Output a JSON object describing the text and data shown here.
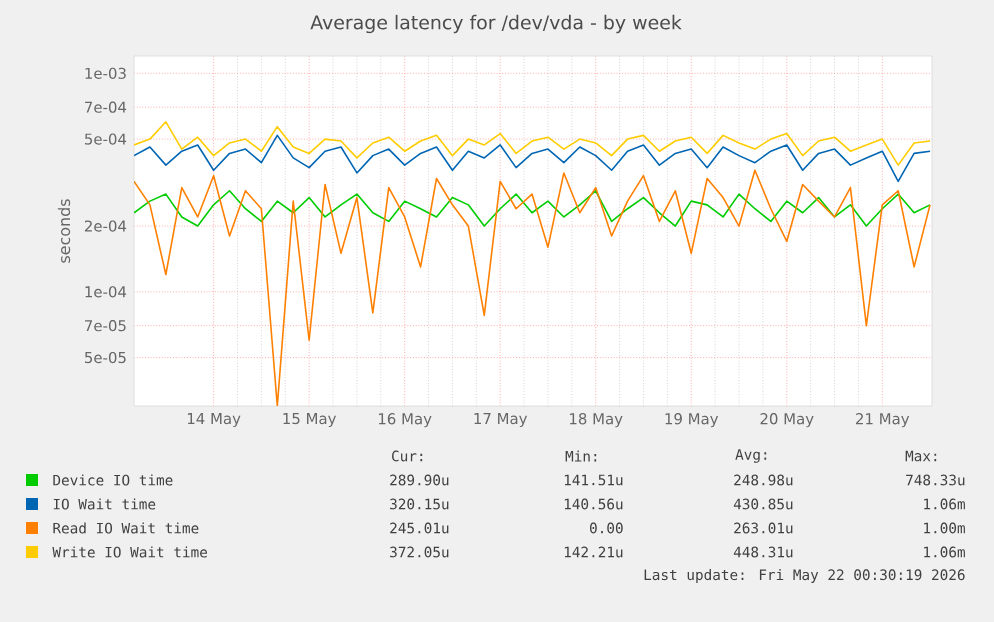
{
  "chart_data": {
    "type": "line",
    "title": "Average latency for /dev/vda - by week",
    "ylabel": "seconds",
    "log": true,
    "grid": true,
    "legend": "bottom",
    "marker": "none",
    "line_style": "solid",
    "xlim": [
      "2026-05-13T16:00",
      "2026-05-22T00:30"
    ],
    "xticks": [
      {
        "value": "2026-05-14T12:00",
        "label": "14 May"
      },
      {
        "value": "2026-05-15T12:00",
        "label": "15 May"
      },
      {
        "value": "2026-05-16T12:00",
        "label": "16 May"
      },
      {
        "value": "2026-05-17T12:00",
        "label": "17 May"
      },
      {
        "value": "2026-05-18T12:00",
        "label": "18 May"
      },
      {
        "value": "2026-05-19T12:00",
        "label": "19 May"
      },
      {
        "value": "2026-05-20T12:00",
        "label": "20 May"
      },
      {
        "value": "2026-05-21T12:00",
        "label": "21 May"
      }
    ],
    "ylim": [
      3e-05,
      0.0012
    ],
    "yticks": [
      {
        "value": 5e-05,
        "label": "5e-05"
      },
      {
        "value": 7e-05,
        "label": "7e-05"
      },
      {
        "value": 0.0001,
        "label": "1e-04"
      },
      {
        "value": 0.0002,
        "label": "2e-04"
      },
      {
        "value": 0.0005,
        "label": "5e-04"
      },
      {
        "value": 0.0007,
        "label": "7e-04"
      },
      {
        "value": 0.001,
        "label": "1e-03"
      }
    ],
    "x": [
      "2026-05-13T16:00",
      "2026-05-13T20:00",
      "2026-05-14T00:00",
      "2026-05-14T04:00",
      "2026-05-14T08:00",
      "2026-05-14T12:00",
      "2026-05-14T16:00",
      "2026-05-14T20:00",
      "2026-05-15T00:00",
      "2026-05-15T04:00",
      "2026-05-15T08:00",
      "2026-05-15T12:00",
      "2026-05-15T16:00",
      "2026-05-15T20:00",
      "2026-05-16T00:00",
      "2026-05-16T04:00",
      "2026-05-16T08:00",
      "2026-05-16T12:00",
      "2026-05-16T16:00",
      "2026-05-16T20:00",
      "2026-05-17T00:00",
      "2026-05-17T04:00",
      "2026-05-17T08:00",
      "2026-05-17T12:00",
      "2026-05-17T16:00",
      "2026-05-17T20:00",
      "2026-05-18T00:00",
      "2026-05-18T04:00",
      "2026-05-18T08:00",
      "2026-05-18T12:00",
      "2026-05-18T16:00",
      "2026-05-18T20:00",
      "2026-05-19T00:00",
      "2026-05-19T04:00",
      "2026-05-19T08:00",
      "2026-05-19T12:00",
      "2026-05-19T16:00",
      "2026-05-19T20:00",
      "2026-05-20T00:00",
      "2026-05-20T04:00",
      "2026-05-20T08:00",
      "2026-05-20T12:00",
      "2026-05-20T16:00",
      "2026-05-20T20:00",
      "2026-05-21T00:00",
      "2026-05-21T04:00",
      "2026-05-21T08:00",
      "2026-05-21T12:00",
      "2026-05-21T16:00",
      "2026-05-21T20:00",
      "2026-05-22T00:00"
    ],
    "series": [
      {
        "name": "Device IO time",
        "color": "#00cc00",
        "values": [
          0.00023,
          0.00026,
          0.00028,
          0.00022,
          0.0002,
          0.00025,
          0.00029,
          0.00024,
          0.00021,
          0.00026,
          0.00023,
          0.00027,
          0.00022,
          0.00025,
          0.00028,
          0.00023,
          0.00021,
          0.00026,
          0.00024,
          0.00022,
          0.00027,
          0.00025,
          0.0002,
          0.00024,
          0.00028,
          0.00023,
          0.00026,
          0.00022,
          0.00025,
          0.00029,
          0.00021,
          0.00024,
          0.00027,
          0.00023,
          0.0002,
          0.00026,
          0.00025,
          0.00022,
          0.00028,
          0.00024,
          0.00021,
          0.00026,
          0.00023,
          0.00027,
          0.00022,
          0.00025,
          0.0002,
          0.00024,
          0.00028,
          0.00023,
          0.00025
        ]
      },
      {
        "name": "IO Wait time",
        "color": "#0066b3",
        "values": [
          0.00042,
          0.00046,
          0.00038,
          0.00044,
          0.00047,
          0.00036,
          0.00043,
          0.00045,
          0.00039,
          0.00052,
          0.00041,
          0.00037,
          0.00044,
          0.00046,
          0.00035,
          0.00042,
          0.00045,
          0.00038,
          0.00043,
          0.00046,
          0.00036,
          0.00044,
          0.00041,
          0.00047,
          0.00037,
          0.00043,
          0.00045,
          0.00039,
          0.00046,
          0.00042,
          0.00036,
          0.00044,
          0.00047,
          0.00038,
          0.00043,
          0.00045,
          0.00037,
          0.00046,
          0.00042,
          0.00039,
          0.00044,
          0.00047,
          0.00036,
          0.00043,
          0.00045,
          0.00038,
          0.00041,
          0.00044,
          0.00032,
          0.00043,
          0.00044
        ]
      },
      {
        "name": "Read IO Wait time",
        "color": "#ff8000",
        "values": [
          0.00032,
          0.00025,
          0.00012,
          0.0003,
          0.00022,
          0.00034,
          0.00018,
          0.00029,
          0.00024,
          3e-05,
          0.00026,
          6e-05,
          0.00031,
          0.00015,
          0.00027,
          8e-05,
          0.0003,
          0.00022,
          0.00013,
          0.00033,
          0.00025,
          0.0002,
          7.8e-05,
          0.00032,
          0.00024,
          0.00028,
          0.00016,
          0.00035,
          0.00023,
          0.0003,
          0.00018,
          0.00026,
          0.00034,
          0.00021,
          0.00029,
          0.00015,
          0.00033,
          0.00027,
          0.0002,
          0.00036,
          0.00024,
          0.00017,
          0.00031,
          0.00026,
          0.00022,
          0.0003,
          7e-05,
          0.00025,
          0.00029,
          0.00013,
          0.00025
        ]
      },
      {
        "name": "Write IO Wait time",
        "color": "#ffcc00",
        "values": [
          0.00047,
          0.0005,
          0.0006,
          0.00045,
          0.00051,
          0.00042,
          0.00048,
          0.0005,
          0.00044,
          0.00057,
          0.00046,
          0.00043,
          0.0005,
          0.00049,
          0.00041,
          0.00048,
          0.00051,
          0.00044,
          0.00049,
          0.00052,
          0.00042,
          0.0005,
          0.00047,
          0.00053,
          0.00043,
          0.00049,
          0.00051,
          0.00045,
          0.0005,
          0.00048,
          0.00042,
          0.0005,
          0.00052,
          0.00044,
          0.00049,
          0.00051,
          0.00043,
          0.00052,
          0.00048,
          0.00045,
          0.0005,
          0.00053,
          0.00042,
          0.00049,
          0.00051,
          0.00044,
          0.00047,
          0.0005,
          0.00038,
          0.00048,
          0.00049
        ]
      }
    ],
    "annotations": [
      "Cur:",
      "Min:",
      "Avg:",
      "Max:",
      "289.90u",
      "141.51u",
      "248.98u",
      "748.33u",
      "320.15u",
      "140.56u",
      "430.85u",
      "1.06m",
      "245.01u",
      "0.00",
      "263.01u",
      "1.00m",
      "372.05u",
      "142.21u",
      "448.31u",
      "1.06m",
      "Last update: Fri May 22 00:30:19 2026"
    ]
  }
}
